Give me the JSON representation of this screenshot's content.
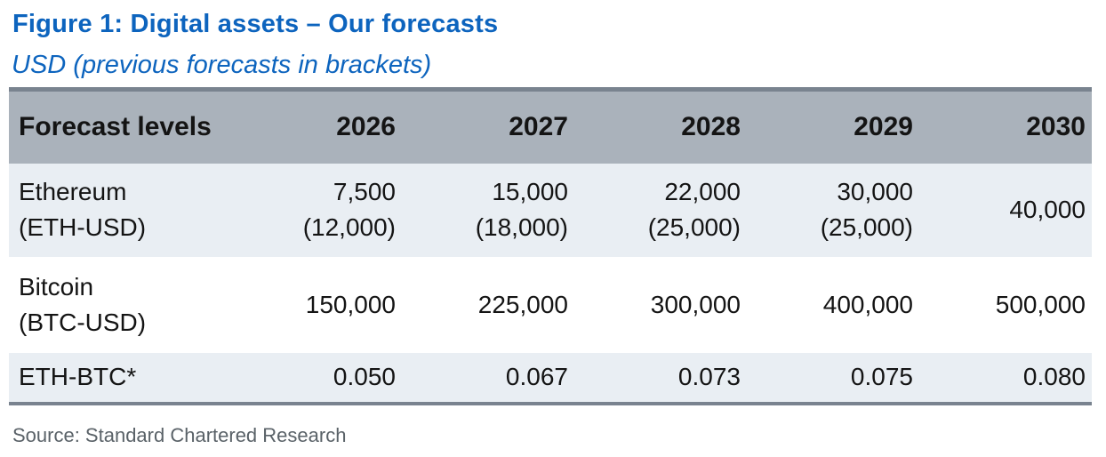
{
  "figure": {
    "title": "Figure 1: Digital assets – Our forecasts",
    "subtitle": "USD (previous forecasts in brackets)",
    "source": "Source: Standard Chartered Research"
  },
  "colors": {
    "accent_blue": "#0D64BE",
    "header_bg": "#AAB2BB",
    "row_alt_bg": "#E9EEF3",
    "border_dark": "#79838F",
    "source_text": "#5A6268"
  },
  "table": {
    "header": [
      "Forecast levels",
      "2026",
      "2027",
      "2028",
      "2029",
      "2030"
    ],
    "rows": [
      {
        "label": [
          "Ethereum",
          "(ETH-USD)"
        ],
        "cells": [
          [
            "7,500",
            "(12,000)"
          ],
          [
            "15,000",
            "(18,000)"
          ],
          [
            "22,000",
            "(25,000)"
          ],
          [
            "30,000",
            "(25,000)"
          ],
          [
            "40,000"
          ]
        ]
      },
      {
        "label": [
          "Bitcoin",
          "(BTC-USD)"
        ],
        "cells": [
          [
            "150,000"
          ],
          [
            "225,000"
          ],
          [
            "300,000"
          ],
          [
            "400,000"
          ],
          [
            "500,000"
          ]
        ]
      },
      {
        "label": [
          "ETH-BTC*"
        ],
        "cells": [
          [
            "0.050"
          ],
          [
            "0.067"
          ],
          [
            "0.073"
          ],
          [
            "0.075"
          ],
          [
            "0.080"
          ]
        ]
      }
    ]
  },
  "chart_data": {
    "type": "table",
    "title": "Figure 1: Digital assets – Our forecasts",
    "subtitle": "USD (previous forecasts in brackets)",
    "columns": [
      "Forecast levels",
      "2026",
      "2027",
      "2028",
      "2029",
      "2030"
    ],
    "rows": [
      {
        "asset": "Ethereum (ETH-USD)",
        "forecasts": [
          7500,
          15000,
          22000,
          30000,
          40000
        ],
        "previous_forecasts": [
          12000,
          18000,
          25000,
          25000,
          null
        ]
      },
      {
        "asset": "Bitcoin (BTC-USD)",
        "forecasts": [
          150000,
          225000,
          300000,
          400000,
          500000
        ],
        "previous_forecasts": [
          null,
          null,
          null,
          null,
          null
        ]
      },
      {
        "asset": "ETH-BTC*",
        "forecasts": [
          0.05,
          0.067,
          0.073,
          0.075,
          0.08
        ],
        "previous_forecasts": [
          null,
          null,
          null,
          null,
          null
        ]
      }
    ],
    "source": "Source: Standard Chartered Research"
  }
}
